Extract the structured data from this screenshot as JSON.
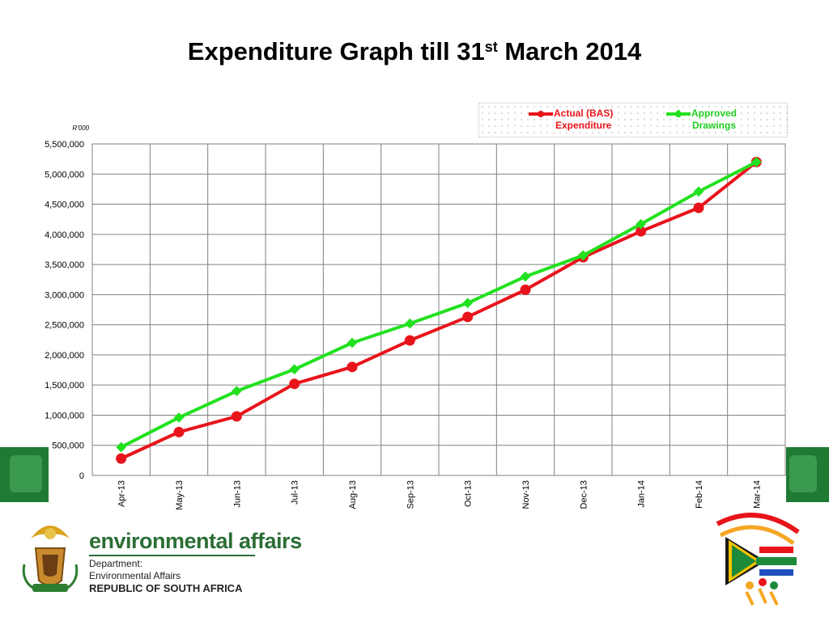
{
  "title": {
    "main": "Expenditure Graph till 31",
    "sup": "st",
    "tail": " March 2014"
  },
  "unit_label": "R'000",
  "colors": {
    "actual": "#e8141b",
    "approved": "#22e11f",
    "band": "#1f7a33",
    "grid": "#808080"
  },
  "footer": {
    "brand": "environmental affairs",
    "dept_lines": [
      "Department:",
      "Environmental Affairs"
    ],
    "country": "REPUBLIC OF SOUTH AFRICA",
    "left_logo_icon": "coat-of-arms-icon",
    "right_logo_icon": "20-years-of-freedom-logo"
  },
  "chart_data": {
    "type": "line",
    "title": "Expenditure Graph till 31st March 2014",
    "ylabel": "R'000",
    "xlabel": "",
    "ylim": [
      0,
      5500000
    ],
    "yticks": [
      0,
      500000,
      1000000,
      1500000,
      2000000,
      2500000,
      3000000,
      3500000,
      4000000,
      4500000,
      5000000,
      5500000
    ],
    "ytick_labels": [
      "0",
      "500,000",
      "1,000,000",
      "1,500,000",
      "2,000,000",
      "2,500,000",
      "3,000,000",
      "3,500,000",
      "4,000,000",
      "4,500,000",
      "5,000,000",
      "5,500,000"
    ],
    "grid": true,
    "legend_position": "top-right",
    "categories": [
      "Apr-13",
      "May-13",
      "Jun-13",
      "Jul-13",
      "Aug-13",
      "Sep-13",
      "Oct-13",
      "Nov-13",
      "Dec-13",
      "Jan-14",
      "Feb-14",
      "Mar-14"
    ],
    "series": [
      {
        "name": "Actual (BAS) Expenditure",
        "legend_lines": [
          "Actual (BAS)",
          "Expenditure"
        ],
        "values": [
          280000,
          720000,
          980000,
          1520000,
          1800000,
          2240000,
          2630000,
          3080000,
          3620000,
          4050000,
          4440000,
          5200000
        ]
      },
      {
        "name": "Approved Drawings",
        "legend_lines": [
          "Approved",
          "Drawings"
        ],
        "values": [
          470000,
          960000,
          1400000,
          1760000,
          2200000,
          2520000,
          2860000,
          3300000,
          3650000,
          4170000,
          4710000,
          5200000
        ]
      }
    ]
  }
}
